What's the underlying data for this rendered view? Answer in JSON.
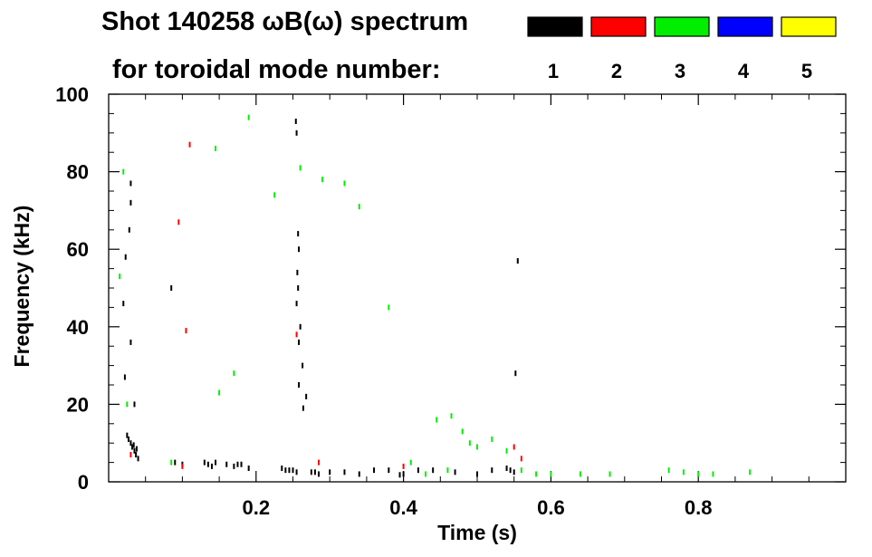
{
  "chart_data": {
    "type": "scatter",
    "title": "Shot 140258 ωB(ω) spectrum",
    "subtitle": "for toroidal mode number:",
    "xlabel": "Time (s)",
    "ylabel": "Frequency (kHz)",
    "xlim": [
      0.0,
      1.0
    ],
    "ylim": [
      0,
      100
    ],
    "x_ticks": [
      0.2,
      0.4,
      0.6,
      0.8
    ],
    "x_tick_labels": [
      "0.2",
      "0.4",
      "0.6",
      "0.8"
    ],
    "y_ticks": [
      0,
      20,
      40,
      60,
      80,
      100
    ],
    "y_tick_labels": [
      "0",
      "20",
      "40",
      "60",
      "80",
      "100"
    ],
    "grid": false,
    "legend_position": "top-right",
    "series": [
      {
        "name": "1",
        "color": "#000000",
        "points": [
          [
            0.025,
            12
          ],
          [
            0.027,
            11
          ],
          [
            0.03,
            10
          ],
          [
            0.032,
            9
          ],
          [
            0.035,
            8
          ],
          [
            0.037,
            7
          ],
          [
            0.04,
            6
          ],
          [
            0.034,
            9.5
          ],
          [
            0.038,
            8.5
          ],
          [
            0.02,
            46
          ],
          [
            0.023,
            58
          ],
          [
            0.028,
            65
          ],
          [
            0.03,
            72
          ],
          [
            0.03,
            77
          ],
          [
            0.03,
            36
          ],
          [
            0.022,
            27
          ],
          [
            0.035,
            20
          ],
          [
            0.085,
            50
          ],
          [
            0.09,
            5
          ],
          [
            0.1,
            4.5
          ],
          [
            0.13,
            5
          ],
          [
            0.135,
            4.5
          ],
          [
            0.14,
            4
          ],
          [
            0.145,
            5
          ],
          [
            0.16,
            4.5
          ],
          [
            0.17,
            4
          ],
          [
            0.175,
            4.5
          ],
          [
            0.18,
            4.5
          ],
          [
            0.19,
            3.5
          ],
          [
            0.235,
            3.5
          ],
          [
            0.24,
            3
          ],
          [
            0.245,
            3
          ],
          [
            0.25,
            3
          ],
          [
            0.255,
            2.5
          ],
          [
            0.258,
            60
          ],
          [
            0.256,
            54
          ],
          [
            0.257,
            50
          ],
          [
            0.254,
            93
          ],
          [
            0.255,
            90
          ],
          [
            0.257,
            64
          ],
          [
            0.255,
            46
          ],
          [
            0.26,
            40
          ],
          [
            0.258,
            36
          ],
          [
            0.263,
            30
          ],
          [
            0.258,
            25
          ],
          [
            0.264,
            19
          ],
          [
            0.268,
            22
          ],
          [
            0.275,
            2.5
          ],
          [
            0.28,
            2.5
          ],
          [
            0.285,
            2
          ],
          [
            0.3,
            2.5
          ],
          [
            0.32,
            2.5
          ],
          [
            0.34,
            2
          ],
          [
            0.36,
            3
          ],
          [
            0.38,
            3
          ],
          [
            0.395,
            1.8
          ],
          [
            0.4,
            2
          ],
          [
            0.42,
            3
          ],
          [
            0.44,
            3
          ],
          [
            0.47,
            2.5
          ],
          [
            0.5,
            2
          ],
          [
            0.52,
            3
          ],
          [
            0.54,
            3.5
          ],
          [
            0.545,
            3
          ],
          [
            0.55,
            2.5
          ],
          [
            0.555,
            57
          ],
          [
            0.552,
            28
          ]
        ]
      },
      {
        "name": "2",
        "color": "#ff0000",
        "points": [
          [
            0.095,
            67
          ],
          [
            0.105,
            39
          ],
          [
            0.1,
            4
          ],
          [
            0.11,
            87
          ],
          [
            0.255,
            38
          ],
          [
            0.285,
            5
          ],
          [
            0.4,
            4
          ],
          [
            0.55,
            9
          ],
          [
            0.56,
            6
          ],
          [
            0.03,
            7
          ]
        ]
      },
      {
        "name": "3",
        "color": "#00ee00",
        "points": [
          [
            0.02,
            80
          ],
          [
            0.025,
            20
          ],
          [
            0.015,
            53
          ],
          [
            0.085,
            5
          ],
          [
            0.145,
            86
          ],
          [
            0.15,
            23
          ],
          [
            0.17,
            28
          ],
          [
            0.19,
            94
          ],
          [
            0.225,
            74
          ],
          [
            0.26,
            81
          ],
          [
            0.29,
            78
          ],
          [
            0.32,
            77
          ],
          [
            0.34,
            71
          ],
          [
            0.38,
            45
          ],
          [
            0.41,
            5
          ],
          [
            0.43,
            2
          ],
          [
            0.445,
            16
          ],
          [
            0.46,
            3
          ],
          [
            0.465,
            17
          ],
          [
            0.48,
            13
          ],
          [
            0.49,
            10
          ],
          [
            0.5,
            9
          ],
          [
            0.52,
            11
          ],
          [
            0.54,
            8
          ],
          [
            0.56,
            3
          ],
          [
            0.58,
            2
          ],
          [
            0.6,
            2
          ],
          [
            0.64,
            2
          ],
          [
            0.68,
            2
          ],
          [
            0.76,
            3
          ],
          [
            0.78,
            2.5
          ],
          [
            0.8,
            2
          ],
          [
            0.82,
            2
          ],
          [
            0.87,
            2.5
          ]
        ]
      },
      {
        "name": "4",
        "color": "#0000ff",
        "points": []
      },
      {
        "name": "5",
        "color": "#ffff00",
        "points": []
      }
    ]
  }
}
